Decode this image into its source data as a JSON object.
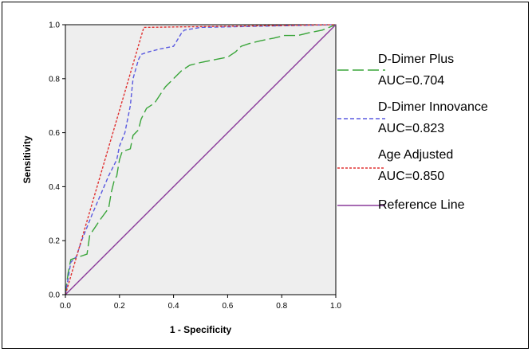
{
  "chart_data": {
    "type": "line",
    "xlabel": "1 - Specificity",
    "ylabel": "Sensitivity",
    "xlim": [
      0,
      1
    ],
    "ylim": [
      0,
      1
    ],
    "x_ticks": [
      "0.0",
      "0.2",
      "0.4",
      "0.6",
      "0.8",
      "1.0"
    ],
    "y_ticks": [
      "0.0",
      "0.2",
      "0.4",
      "0.6",
      "0.8",
      "1.0"
    ],
    "grid": false,
    "legend_position": "right",
    "plot_background": "#eeeeee",
    "series": [
      {
        "name": "D-Dimer Plus",
        "auc_label": "AUC=0.704",
        "color": "#3aa53a",
        "dash": "long-dash",
        "points": [
          [
            0.0,
            0.0
          ],
          [
            0.01,
            0.08
          ],
          [
            0.02,
            0.13
          ],
          [
            0.05,
            0.14
          ],
          [
            0.08,
            0.15
          ],
          [
            0.09,
            0.22
          ],
          [
            0.11,
            0.25
          ],
          [
            0.13,
            0.28
          ],
          [
            0.16,
            0.32
          ],
          [
            0.17,
            0.38
          ],
          [
            0.18,
            0.42
          ],
          [
            0.19,
            0.44
          ],
          [
            0.2,
            0.5
          ],
          [
            0.21,
            0.53
          ],
          [
            0.24,
            0.54
          ],
          [
            0.25,
            0.59
          ],
          [
            0.27,
            0.61
          ],
          [
            0.28,
            0.65
          ],
          [
            0.3,
            0.69
          ],
          [
            0.33,
            0.71
          ],
          [
            0.35,
            0.74
          ],
          [
            0.37,
            0.77
          ],
          [
            0.4,
            0.8
          ],
          [
            0.43,
            0.83
          ],
          [
            0.46,
            0.85
          ],
          [
            0.5,
            0.86
          ],
          [
            0.55,
            0.87
          ],
          [
            0.6,
            0.88
          ],
          [
            0.63,
            0.9
          ],
          [
            0.65,
            0.92
          ],
          [
            0.68,
            0.93
          ],
          [
            0.72,
            0.94
          ],
          [
            0.77,
            0.95
          ],
          [
            0.81,
            0.96
          ],
          [
            0.86,
            0.96
          ],
          [
            0.9,
            0.97
          ],
          [
            0.95,
            0.98
          ],
          [
            1.0,
            1.0
          ]
        ]
      },
      {
        "name": "D-Dimer Innovance",
        "auc_label": "AUC=0.823",
        "color": "#5a5ae0",
        "dash": "dash",
        "points": [
          [
            0.0,
            0.0
          ],
          [
            0.01,
            0.06
          ],
          [
            0.02,
            0.12
          ],
          [
            0.04,
            0.14
          ],
          [
            0.06,
            0.2
          ],
          [
            0.1,
            0.3
          ],
          [
            0.13,
            0.37
          ],
          [
            0.16,
            0.44
          ],
          [
            0.19,
            0.5
          ],
          [
            0.2,
            0.55
          ],
          [
            0.22,
            0.6
          ],
          [
            0.24,
            0.7
          ],
          [
            0.25,
            0.8
          ],
          [
            0.27,
            0.87
          ],
          [
            0.28,
            0.89
          ],
          [
            0.31,
            0.9
          ],
          [
            0.35,
            0.91
          ],
          [
            0.4,
            0.92
          ],
          [
            0.43,
            0.97
          ],
          [
            0.44,
            0.98
          ],
          [
            0.5,
            0.99
          ],
          [
            1.0,
            1.0
          ]
        ]
      },
      {
        "name": "Age Adjusted",
        "auc_label": "AUC=0.850",
        "color": "#e03030",
        "dash": "dot",
        "points": [
          [
            0.0,
            0.0
          ],
          [
            0.29,
            0.99
          ],
          [
            1.0,
            1.0
          ]
        ]
      },
      {
        "name": "Reference Line",
        "auc_label": "",
        "color": "#8a3a9a",
        "dash": "solid",
        "points": [
          [
            0.0,
            0.0
          ],
          [
            1.0,
            1.0
          ]
        ]
      }
    ]
  }
}
